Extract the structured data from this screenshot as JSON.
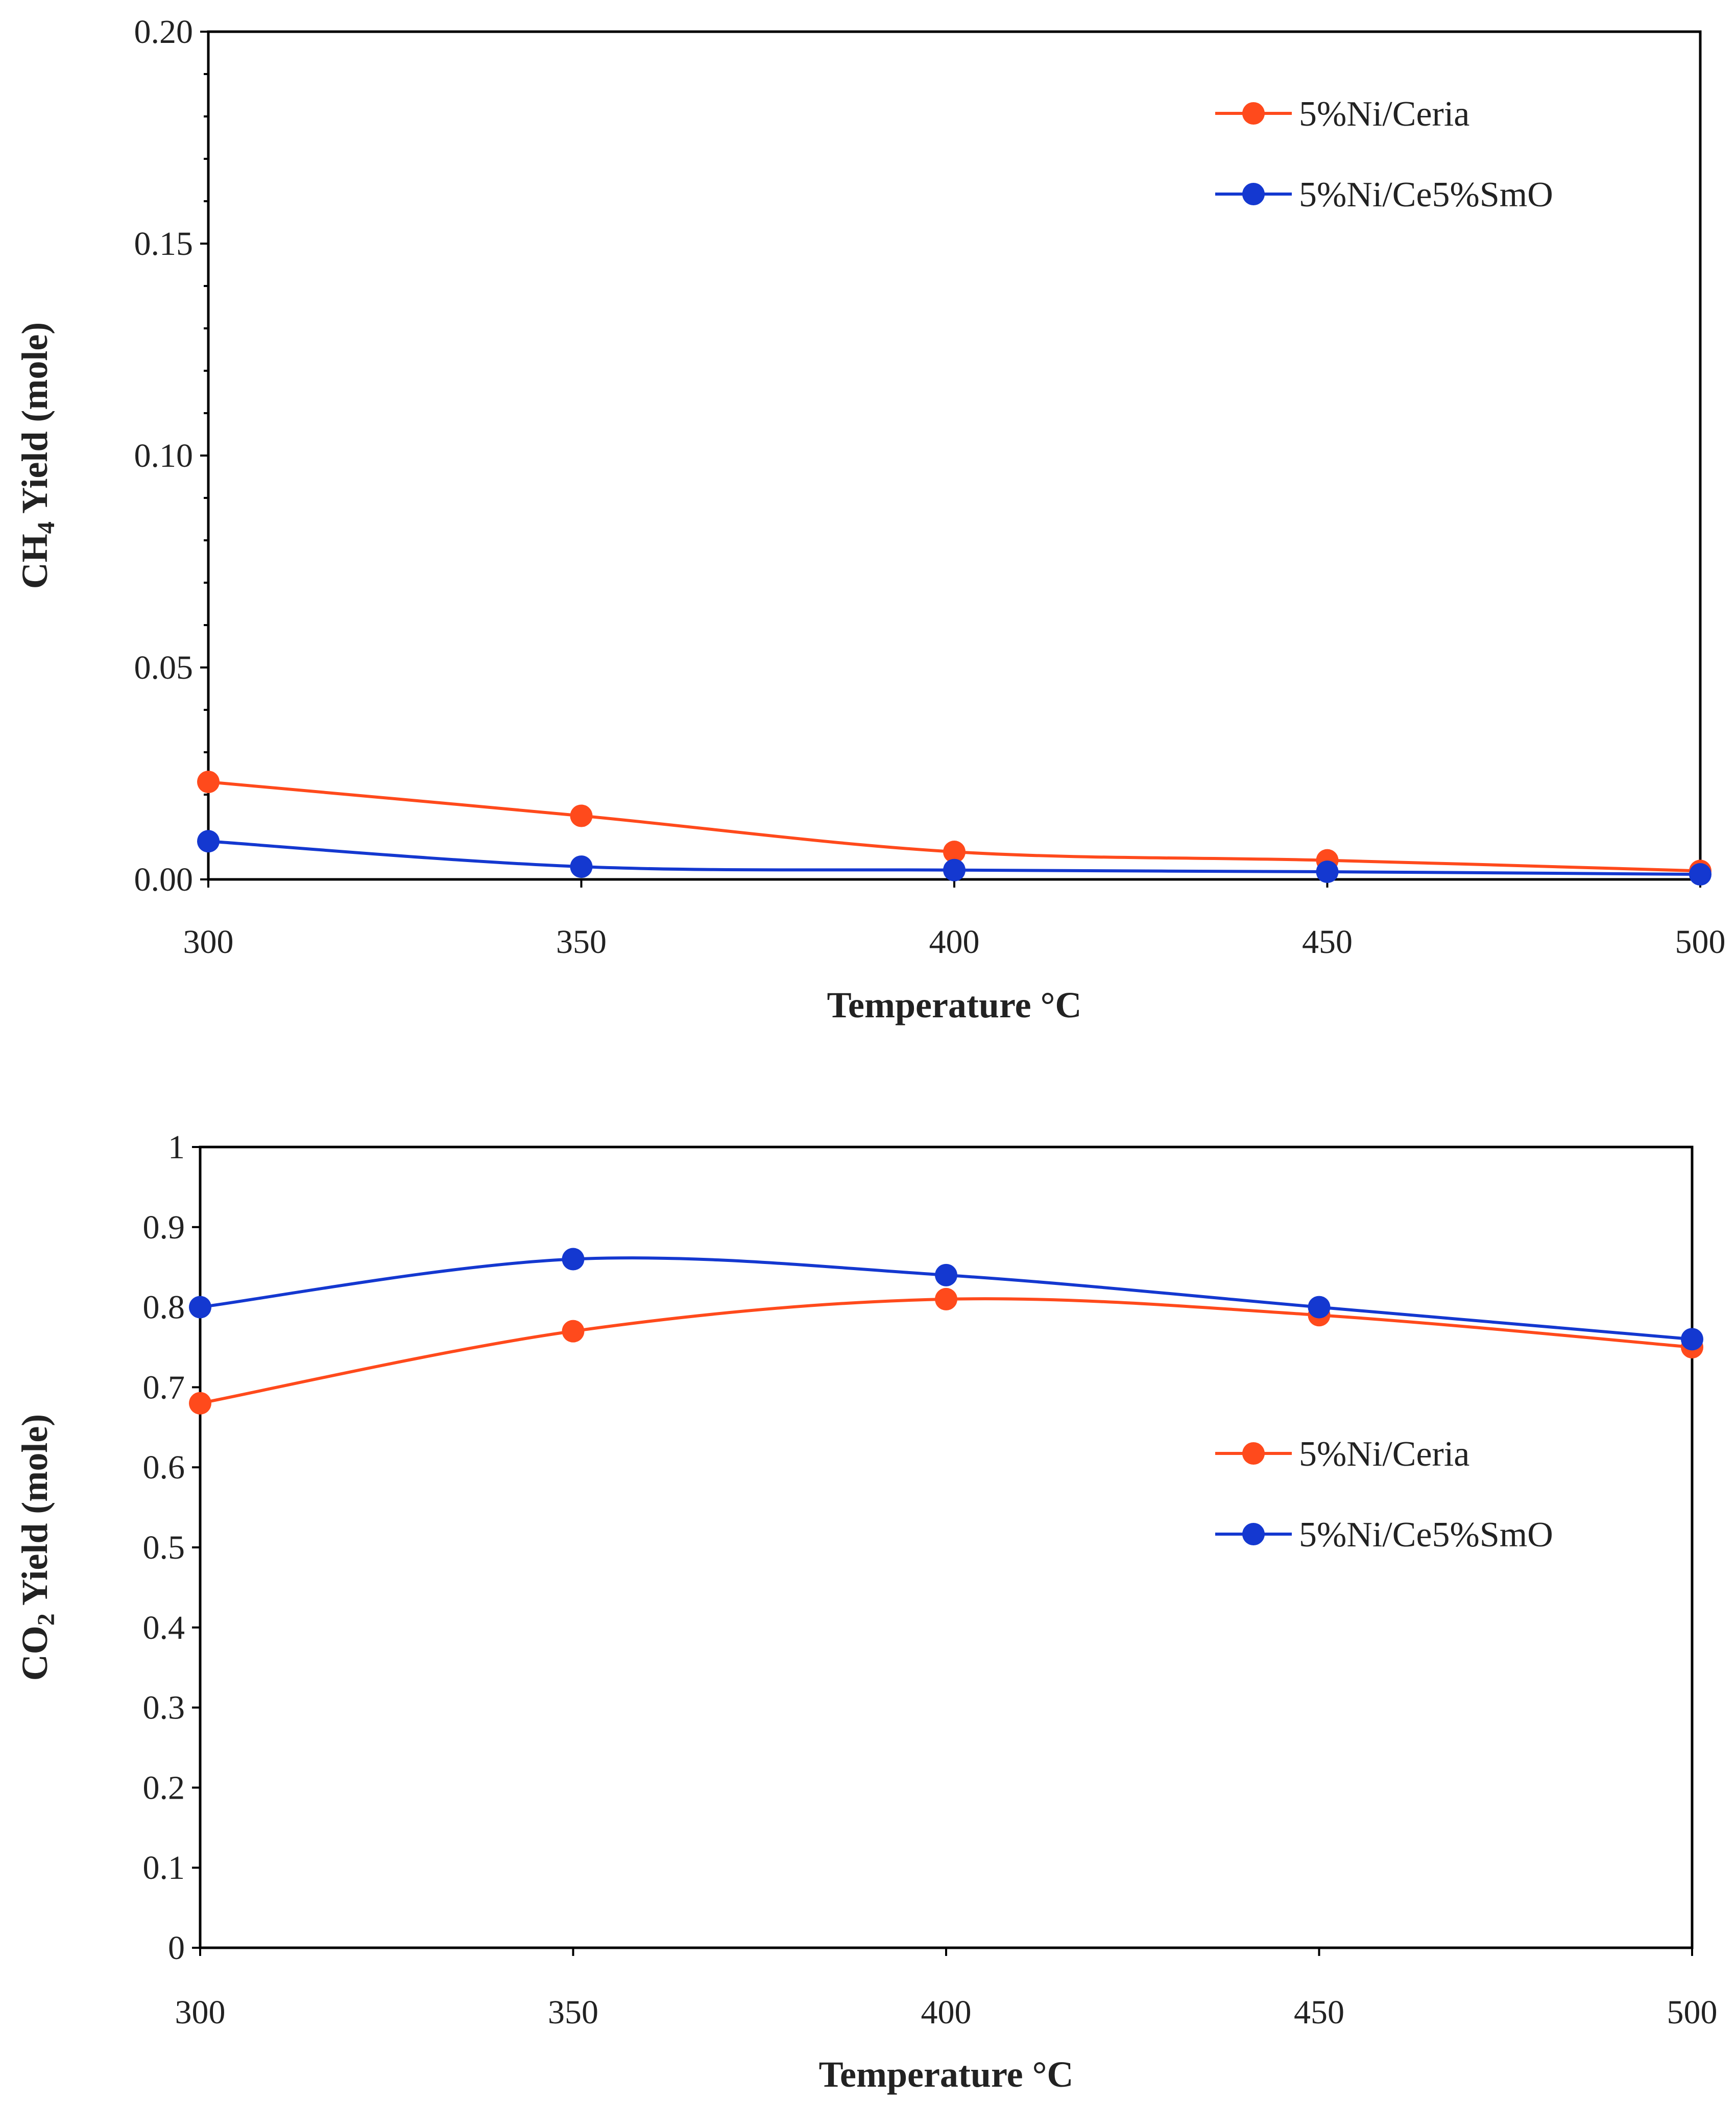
{
  "chart_data": [
    {
      "type": "line",
      "xlabel": "Temperature °C",
      "ylabel": {
        "prefix": "CH",
        "subscript": "4",
        "suffix": " Yield (mole)"
      },
      "xlim": [
        300,
        500
      ],
      "ylim": [
        0,
        0.2
      ],
      "x": [
        300,
        350,
        400,
        450,
        500
      ],
      "xticks": [
        "300",
        "350",
        "400",
        "450",
        "500"
      ],
      "yticks": [
        "0.00",
        "0.05",
        "0.10",
        "0.15",
        "0.20"
      ],
      "legend_position": "top-right",
      "series": [
        {
          "name": "5%Ni/Ceria",
          "color": "#ff4a1c",
          "values": [
            0.023,
            0.015,
            0.0065,
            0.0045,
            0.002
          ]
        },
        {
          "name": "5%Ni/Ce5%SmO",
          "color": "#1438d0",
          "values": [
            0.009,
            0.003,
            0.0022,
            0.0018,
            0.0012
          ]
        }
      ]
    },
    {
      "type": "line",
      "xlabel": "Temperature °C",
      "ylabel": {
        "prefix": "CO",
        "subscript": "2",
        "suffix": " Yield (mole)"
      },
      "xlim": [
        300,
        500
      ],
      "ylim": [
        0,
        1
      ],
      "x": [
        300,
        350,
        400,
        450,
        500
      ],
      "xticks": [
        "300",
        "350",
        "400",
        "450",
        "500"
      ],
      "yticks": [
        "0",
        "0.1",
        "0.2",
        "0.3",
        "0.4",
        "0.5",
        "0.6",
        "0.7",
        "0.8",
        "0.9",
        "1"
      ],
      "legend_position": "center-right",
      "series": [
        {
          "name": "5%Ni/Ceria",
          "color": "#ff4a1c",
          "values": [
            0.68,
            0.77,
            0.81,
            0.79,
            0.75
          ]
        },
        {
          "name": "5%Ni/Ce5%SmO",
          "color": "#1438d0",
          "values": [
            0.8,
            0.86,
            0.84,
            0.8,
            0.76
          ]
        }
      ]
    }
  ]
}
